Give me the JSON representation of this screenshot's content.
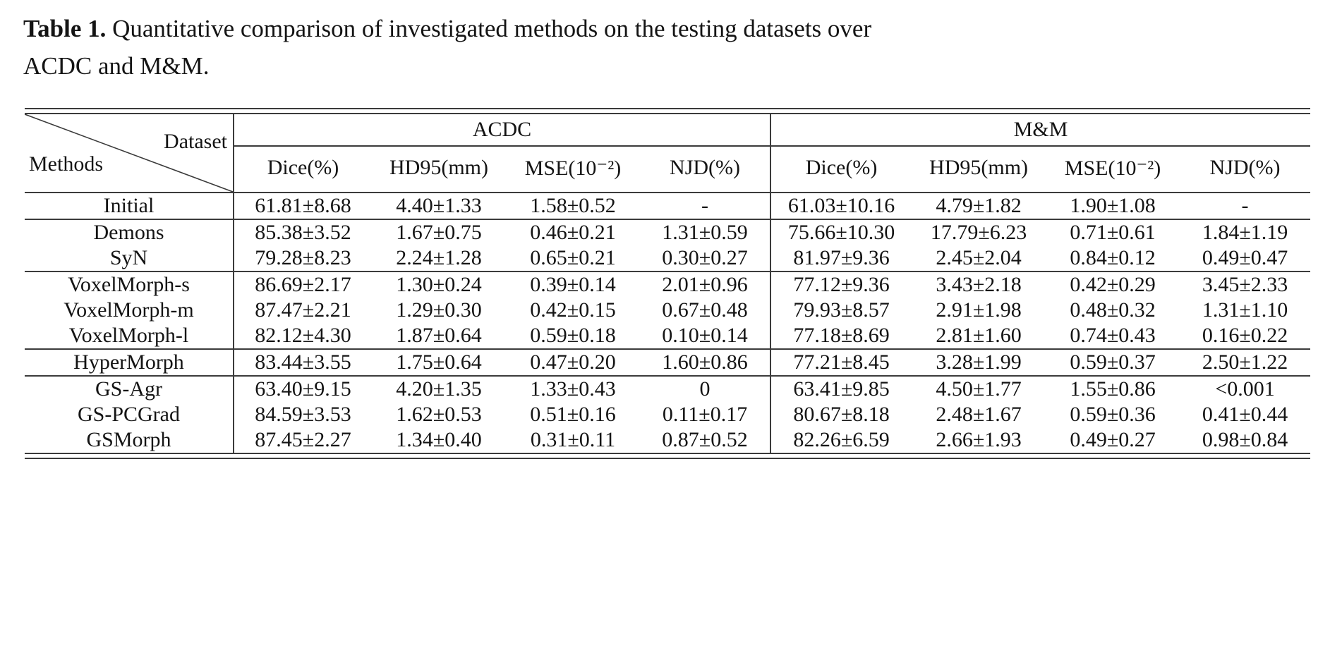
{
  "caption": {
    "label": "Table 1.",
    "text_line1": "Quantitative comparison of investigated methods on the testing datasets over",
    "text_line2": "ACDC and M&M."
  },
  "rule_color": "#3b3b3b",
  "table": {
    "corner": {
      "top_right": "Dataset",
      "bottom_left": "Methods"
    },
    "groups": [
      {
        "label": "ACDC",
        "columns": [
          "Dice(%)",
          "HD95(mm)",
          "MSE(10⁻²)",
          "NJD(%)"
        ]
      },
      {
        "label": "M&M",
        "columns": [
          "Dice(%)",
          "HD95(mm)",
          "MSE(10⁻²)",
          "NJD(%)"
        ]
      }
    ],
    "row_groups": [
      {
        "rows": [
          {
            "method": "Initial",
            "acdc": [
              "61.81±8.68",
              "4.40±1.33",
              "1.58±0.52",
              "-"
            ],
            "mm": [
              "61.03±10.16",
              "4.79±1.82",
              "1.90±1.08",
              "-"
            ]
          }
        ]
      },
      {
        "rows": [
          {
            "method": "Demons",
            "acdc": [
              "85.38±3.52",
              "1.67±0.75",
              "0.46±0.21",
              "1.31±0.59"
            ],
            "mm": [
              "75.66±10.30",
              "17.79±6.23",
              "0.71±0.61",
              "1.84±1.19"
            ]
          },
          {
            "method": "SyN",
            "acdc": [
              "79.28±8.23",
              "2.24±1.28",
              "0.65±0.21",
              "0.30±0.27"
            ],
            "mm": [
              "81.97±9.36",
              {
                "v": "2.45±2.04",
                "bold": true
              },
              "0.84±0.12",
              "0.49±0.47"
            ]
          }
        ]
      },
      {
        "rows": [
          {
            "method": "VoxelMorph-s",
            "acdc": [
              "86.69±2.17",
              "1.30±0.24",
              "0.39±0.14",
              "2.01±0.96"
            ],
            "mm": [
              "77.12±9.36",
              "3.43±2.18",
              {
                "v": "0.42±0.29",
                "bold": true
              },
              "3.45±2.33"
            ]
          },
          {
            "method": "VoxelMorph-m",
            "acdc": [
              {
                "v": "87.47±2.21",
                "bold": true
              },
              {
                "v": "1.29±0.30",
                "bold": true
              },
              "0.42±0.15",
              "0.67±0.48"
            ],
            "mm": [
              "79.93±8.57",
              "2.91±1.98",
              "0.48±0.32",
              "1.31±1.10"
            ]
          },
          {
            "method": "VoxelMorph-l",
            "acdc": [
              "82.12±4.30",
              "1.87±0.64",
              "0.59±0.18",
              {
                "v": "0.10±0.14",
                "bold": true
              }
            ],
            "mm": [
              "77.18±8.69",
              "2.81±1.60",
              "0.74±0.43",
              {
                "v": "0.16±0.22",
                "bold": true
              }
            ]
          }
        ]
      },
      {
        "rows": [
          {
            "method": "HyperMorph",
            "acdc": [
              "83.44±3.55",
              "1.75±0.64",
              "0.47±0.20",
              "1.60±0.86"
            ],
            "mm": [
              "77.21±8.45",
              "3.28±1.99",
              "0.59±0.37",
              "2.50±1.22"
            ]
          }
        ]
      },
      {
        "rows": [
          {
            "method": "GS-Agr",
            "acdc": [
              "63.40±9.15",
              "4.20±1.35",
              "1.33±0.43",
              "0"
            ],
            "mm": [
              "63.41±9.85",
              "4.50±1.77",
              "1.55±0.86",
              "<0.001"
            ]
          },
          {
            "method": "GS-PCGrad",
            "acdc": [
              "84.59±3.53",
              "1.62±0.53",
              "0.51±0.16",
              "0.11±0.17"
            ],
            "mm": [
              "80.67±8.18",
              "2.48±1.67",
              "0.59±0.36",
              "0.41±0.44"
            ]
          },
          {
            "method": "GSMorph",
            "acdc": [
              "87.45±2.27",
              "1.34±0.40",
              {
                "v": "0.31±0.11",
                "bold": true
              },
              "0.87±0.52"
            ],
            "mm": [
              {
                "v": "82.26±6.59",
                "bold": true
              },
              "2.66±1.93",
              "0.49±0.27",
              "0.98±0.84"
            ]
          }
        ]
      }
    ]
  }
}
